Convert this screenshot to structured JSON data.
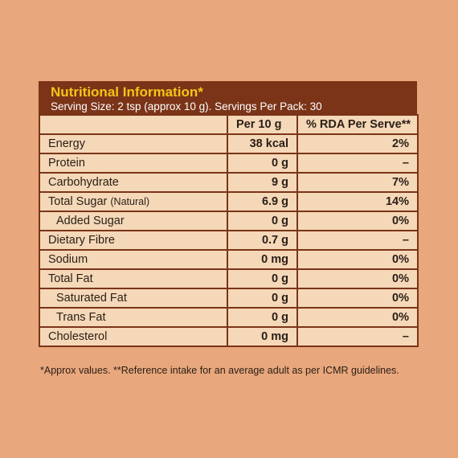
{
  "header": {
    "title": "Nutritional Information*",
    "subtitle": "Serving Size: 2 tsp (approx 10 g). Servings Per Pack: 30"
  },
  "table": {
    "columns": [
      "",
      "Per 10 g",
      "% RDA Per Serve**"
    ],
    "rows": [
      {
        "nutrient": "Energy",
        "note": "",
        "per": "38 kcal",
        "rda": "2%"
      },
      {
        "nutrient": "Protein",
        "note": "",
        "per": "0 g",
        "rda": "–"
      },
      {
        "nutrient": "Carbohydrate",
        "note": "",
        "per": "9 g",
        "rda": "7%"
      },
      {
        "nutrient": "Total Sugar",
        "note": "(Natural)",
        "per": "6.9 g",
        "rda": "14%"
      },
      {
        "nutrient": "Added Sugar",
        "note": "",
        "per": "0 g",
        "rda": "0%"
      },
      {
        "nutrient": "Dietary Fibre",
        "note": "",
        "per": "0.7 g",
        "rda": "–"
      },
      {
        "nutrient": "Sodium",
        "note": "",
        "per": "0 mg",
        "rda": "0%"
      },
      {
        "nutrient": "Total Fat",
        "note": "",
        "per": "0 g",
        "rda": "0%"
      },
      {
        "nutrient": "Saturated Fat",
        "note": "",
        "per": "0 g",
        "rda": "0%"
      },
      {
        "nutrient": "Trans Fat",
        "note": "",
        "per": "0 g",
        "rda": "0%"
      },
      {
        "nutrient": "Cholesterol",
        "note": "",
        "per": "0 mg",
        "rda": "–"
      }
    ]
  },
  "footnote": "*Approx values. **Reference intake for an average adult as per ICMR guidelines.",
  "colors": {
    "background": "#E8A77C",
    "header": "#7B3418",
    "title": "#F5C518",
    "table_fill": "#F4D8B8"
  }
}
